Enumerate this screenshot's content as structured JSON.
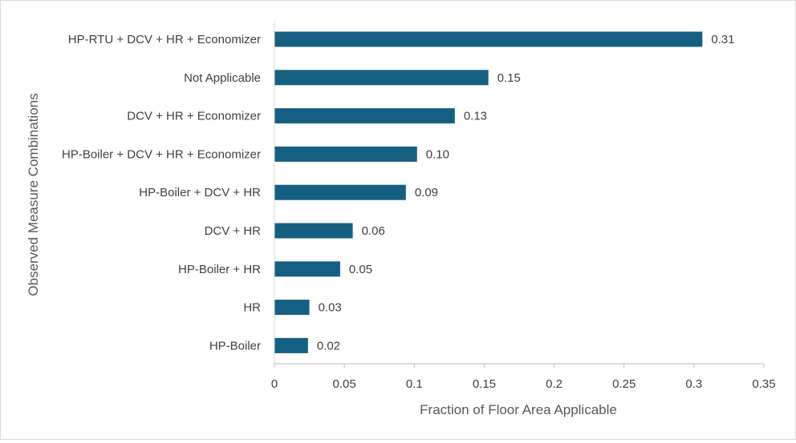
{
  "chart_data": {
    "type": "bar",
    "orientation": "horizontal",
    "categories": [
      "HP-RTU + DCV + HR + Economizer",
      "Not Applicable",
      "DCV + HR + Economizer",
      "HP-Boiler + DCV + HR + Economizer",
      "HP-Boiler + DCV + HR",
      "DCV + HR",
      "HP-Boiler + HR",
      "HR",
      "HP-Boiler"
    ],
    "values": [
      0.306,
      0.153,
      0.129,
      0.102,
      0.094,
      0.056,
      0.047,
      0.025,
      0.024
    ],
    "value_labels": [
      "0.31",
      "0.15",
      "0.13",
      "0.10",
      "0.09",
      "0.06",
      "0.05",
      "0.03",
      "0.02"
    ],
    "xlabel": "Fraction of Floor Area Applicable",
    "ylabel": "Observed Measure Combinations",
    "xlim": [
      0,
      0.35
    ],
    "xticks": [
      0,
      0.05,
      0.1,
      0.15,
      0.2,
      0.25,
      0.3,
      0.35
    ],
    "xtick_labels": [
      "0",
      "0.05",
      "0.1",
      "0.15",
      "0.2",
      "0.25",
      "0.3",
      "0.35"
    ],
    "grid": false,
    "bar_color": "#156082"
  }
}
